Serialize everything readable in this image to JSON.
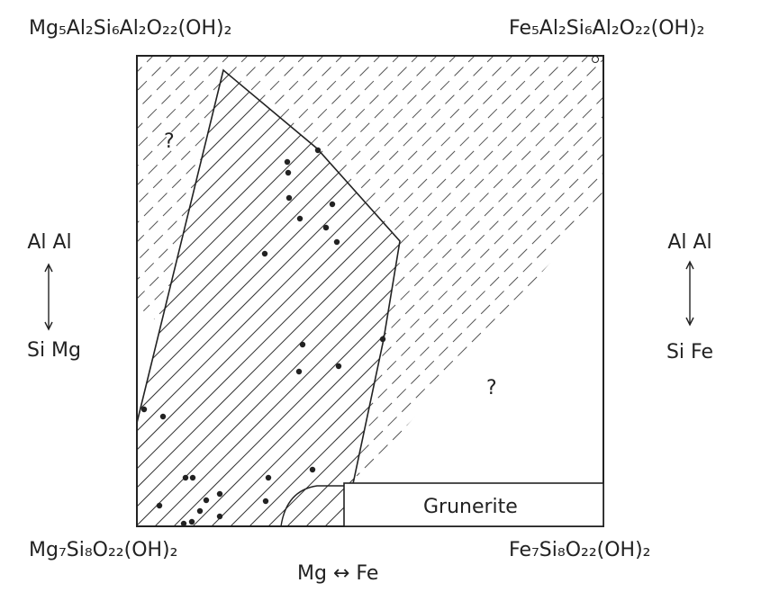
{
  "corners": {
    "top_left": "Mg₅Al₂Si₆Al₂O₂₂(OH)₂",
    "top_right": "Fe₅Al₂Si₆Al₂O₂₂(OH)₂",
    "bottom_left": "Mg₇Si₈O₂₂(OH)₂",
    "bottom_right": "Fe₇Si₈O₂₂(OH)₂"
  },
  "left_axis": {
    "top": "Al Al",
    "bottom": "Si Mg"
  },
  "right_axis": {
    "top": "Al Al",
    "bottom": "Si Fe"
  },
  "bottom_axis": "Mg ↔ Fe",
  "regions": {
    "grunerite": "Grunerite"
  },
  "question_marks": [
    "?",
    "?"
  ]
}
